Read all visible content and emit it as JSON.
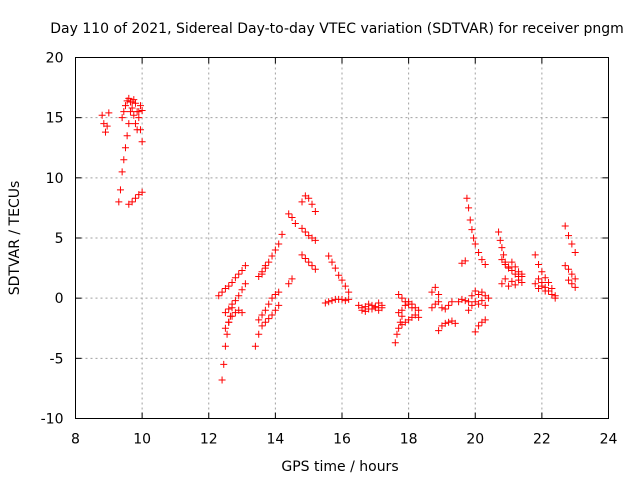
{
  "chart_data": {
    "type": "scatter",
    "title": "Day 110 of 2021, Sidereal Day-to-day VTEC variation (SDTVAR) for receiver pngm",
    "xlabel": "GPS time / hours",
    "ylabel": "SDTVAR / TECUs",
    "xlim": [
      8,
      24
    ],
    "ylim": [
      -10,
      20
    ],
    "xticks": [
      8,
      10,
      12,
      14,
      16,
      18,
      20,
      22,
      24
    ],
    "yticks": [
      -10,
      -5,
      0,
      5,
      10,
      15,
      20
    ],
    "grid": true,
    "marker": "+",
    "color": "#ff0000",
    "segments": [
      {
        "x": [
          8.8,
          8.85,
          8.9,
          8.95,
          9.0
        ],
        "y": [
          15.2,
          14.5,
          13.8,
          14.3,
          15.4
        ]
      },
      {
        "x": [
          9.3,
          9.35,
          9.4,
          9.45,
          9.5,
          9.55,
          9.6,
          9.65,
          9.7,
          9.75,
          9.8,
          9.85,
          9.9,
          9.95,
          10.0
        ],
        "y": [
          8.0,
          9.0,
          10.5,
          11.5,
          12.5,
          13.5,
          14.5,
          15.5,
          16.3,
          16.5,
          16.2,
          15.5,
          15.0,
          14.0,
          13.0
        ]
      },
      {
        "x": [
          9.4,
          9.45,
          9.5,
          9.55,
          9.6,
          9.65,
          9.7,
          9.75,
          9.8,
          9.85,
          9.9,
          9.95,
          10.0
        ],
        "y": [
          15.0,
          15.5,
          16.0,
          16.4,
          16.6,
          16.3,
          15.8,
          15.2,
          14.5,
          14.0,
          15.5,
          16.0,
          15.6
        ]
      },
      {
        "x": [
          9.6,
          9.7,
          9.8,
          9.9,
          10.0
        ],
        "y": [
          7.8,
          8.0,
          8.3,
          8.6,
          8.8
        ]
      },
      {
        "x": [
          12.3,
          12.4,
          12.5,
          12.6,
          12.7,
          12.8,
          12.9,
          13.0,
          13.1
        ],
        "y": [
          0.2,
          0.5,
          0.8,
          1.0,
          1.3,
          1.7,
          2.0,
          2.3,
          2.7
        ]
      },
      {
        "x": [
          12.4,
          12.45,
          12.5,
          12.55,
          12.6,
          12.65,
          12.7
        ],
        "y": [
          -6.8,
          -5.5,
          -4.0,
          -3.0,
          -2.0,
          -1.5,
          -0.8
        ]
      },
      {
        "x": [
          12.5,
          12.6,
          12.7,
          12.8,
          12.9,
          13.0,
          13.1
        ],
        "y": [
          -1.2,
          -0.9,
          -0.5,
          -0.2,
          0.2,
          0.7,
          1.2
        ]
      },
      {
        "x": [
          12.5,
          12.6,
          12.7,
          12.8,
          12.9,
          13.0
        ],
        "y": [
          -2.5,
          -2.0,
          -1.5,
          -1.2,
          -1.0,
          -1.2
        ]
      },
      {
        "x": [
          13.4,
          13.5,
          13.6,
          13.7,
          13.8,
          13.9,
          14.0,
          14.1
        ],
        "y": [
          -4.0,
          -3.0,
          -2.3,
          -2.0,
          -1.7,
          -1.4,
          -1.0,
          -0.6
        ]
      },
      {
        "x": [
          13.5,
          13.6,
          13.7,
          13.8,
          13.9,
          14.0,
          14.1
        ],
        "y": [
          -1.8,
          -1.4,
          -1.0,
          -0.5,
          0.0,
          0.3,
          0.5
        ]
      },
      {
        "x": [
          13.6,
          13.7,
          13.8,
          13.9,
          14.0,
          14.1,
          14.2
        ],
        "y": [
          2.0,
          2.5,
          3.0,
          3.5,
          4.0,
          4.5,
          5.3
        ]
      },
      {
        "x": [
          13.5,
          13.6,
          13.7
        ],
        "y": [
          1.8,
          2.2,
          2.7
        ]
      },
      {
        "x": [
          14.4,
          14.5,
          14.6
        ],
        "y": [
          7.0,
          6.7,
          6.2
        ]
      },
      {
        "x": [
          14.8,
          14.9,
          15.0,
          15.1,
          15.2
        ],
        "y": [
          8.0,
          8.5,
          8.3,
          7.8,
          7.2
        ]
      },
      {
        "x": [
          14.4,
          14.5
        ],
        "y": [
          1.2,
          1.6
        ]
      },
      {
        "x": [
          14.8,
          14.9,
          15.0,
          15.1,
          15.2
        ],
        "y": [
          3.6,
          3.3,
          3.0,
          2.7,
          2.4
        ]
      },
      {
        "x": [
          14.8,
          14.9,
          15.0,
          15.1,
          15.2
        ],
        "y": [
          5.8,
          5.5,
          5.2,
          5.0,
          4.8
        ]
      },
      {
        "x": [
          15.6,
          15.7,
          15.8,
          15.9,
          16.0,
          16.1,
          16.2
        ],
        "y": [
          3.5,
          3.0,
          2.5,
          1.9,
          1.5,
          1.0,
          0.5
        ]
      },
      {
        "x": [
          15.5,
          15.6,
          15.7,
          15.8,
          15.9,
          16.0,
          16.1,
          16.2
        ],
        "y": [
          -0.4,
          -0.3,
          -0.2,
          -0.1,
          -0.1,
          -0.1,
          -0.2,
          -0.1
        ]
      },
      {
        "x": [
          16.5,
          16.6,
          16.7,
          16.8,
          16.9,
          17.0,
          17.1,
          17.2
        ],
        "y": [
          -0.6,
          -0.8,
          -0.7,
          -0.5,
          -0.9,
          -0.7,
          -0.4,
          -0.6
        ]
      },
      {
        "x": [
          16.6,
          16.7,
          16.8,
          16.9,
          17.0,
          17.1,
          17.2
        ],
        "y": [
          -1.0,
          -1.1,
          -0.9,
          -0.6,
          -0.8,
          -1.0,
          -0.8
        ]
      },
      {
        "x": [
          17.6,
          17.65,
          17.7,
          17.75,
          17.8
        ],
        "y": [
          -3.7,
          -3.0,
          -2.5,
          -2.0,
          -1.5
        ]
      },
      {
        "x": [
          17.7,
          17.8,
          17.9,
          18.0,
          18.1,
          18.2,
          18.3
        ],
        "y": [
          -1.2,
          -1.0,
          -0.6,
          -0.3,
          -0.5,
          -0.8,
          -1.0
        ]
      },
      {
        "x": [
          17.7,
          17.8,
          17.9,
          18.0,
          18.1
        ],
        "y": [
          0.3,
          0.0,
          -0.3,
          -0.5,
          -0.8
        ]
      },
      {
        "x": [
          17.8,
          17.9,
          18.0,
          18.1,
          18.2,
          18.3
        ],
        "y": [
          -2.2,
          -2.0,
          -1.8,
          -1.6,
          -1.4,
          -1.6
        ]
      },
      {
        "x": [
          18.7,
          18.8,
          18.9,
          19.0,
          19.1,
          19.2,
          19.3
        ],
        "y": [
          -0.8,
          -0.5,
          -0.3,
          -0.8,
          -0.9,
          -0.6,
          -0.3
        ]
      },
      {
        "x": [
          18.7,
          18.8,
          18.9
        ],
        "y": [
          0.5,
          0.9,
          0.3
        ]
      },
      {
        "x": [
          18.9,
          19.0,
          19.1,
          19.2,
          19.3,
          19.4
        ],
        "y": [
          -2.7,
          -2.3,
          -2.1,
          -2.0,
          -1.9,
          -2.1
        ]
      },
      {
        "x": [
          19.5,
          19.6,
          19.7
        ],
        "y": [
          -0.3,
          -0.1,
          -0.2
        ]
      },
      {
        "x": [
          19.6,
          19.7
        ],
        "y": [
          2.9,
          3.1
        ]
      },
      {
        "x": [
          19.75,
          19.8,
          19.85,
          19.9,
          19.95,
          20.0,
          20.1,
          20.2,
          20.3
        ],
        "y": [
          8.3,
          7.5,
          6.5,
          5.7,
          5.0,
          4.5,
          3.8,
          3.2,
          2.8
        ]
      },
      {
        "x": [
          19.8,
          19.9,
          20.0,
          20.1,
          20.2,
          20.3,
          20.4
        ],
        "y": [
          -0.3,
          0.2,
          0.6,
          0.3,
          0.5,
          0.2,
          0.0
        ]
      },
      {
        "x": [
          19.8,
          19.9,
          20.0,
          20.1,
          20.2,
          20.3
        ],
        "y": [
          -1.0,
          -0.6,
          -0.3,
          -0.5,
          -0.2,
          -0.6
        ]
      },
      {
        "x": [
          20.0,
          20.1,
          20.2,
          20.3
        ],
        "y": [
          -2.8,
          -2.3,
          -2.0,
          -1.8
        ]
      },
      {
        "x": [
          20.7,
          20.75,
          20.8,
          20.85,
          20.9,
          21.0,
          21.1,
          21.2,
          21.3,
          21.4
        ],
        "y": [
          5.5,
          4.8,
          4.2,
          3.6,
          3.0,
          2.6,
          2.3,
          2.0,
          1.8,
          2.0
        ]
      },
      {
        "x": [
          20.8,
          20.9,
          21.0,
          21.1,
          21.2,
          21.3,
          21.4
        ],
        "y": [
          1.2,
          1.6,
          1.0,
          1.4,
          1.1,
          1.5,
          1.3
        ]
      },
      {
        "x": [
          20.8,
          20.9,
          21.0,
          21.1,
          21.2,
          21.3,
          21.4
        ],
        "y": [
          3.2,
          2.8,
          2.5,
          3.0,
          2.6,
          2.2,
          1.8
        ]
      },
      {
        "x": [
          21.8,
          21.9,
          22.0,
          22.1,
          22.2,
          22.3,
          22.4
        ],
        "y": [
          3.6,
          2.8,
          2.2,
          1.7,
          1.3,
          0.8,
          0.2
        ]
      },
      {
        "x": [
          21.8,
          21.9,
          22.0,
          22.1,
          22.2,
          22.3,
          22.4
        ],
        "y": [
          1.2,
          1.6,
          1.3,
          0.9,
          0.6,
          0.3,
          0.0
        ]
      },
      {
        "x": [
          21.9,
          22.0,
          22.1
        ],
        "y": [
          0.8,
          1.0,
          0.6
        ]
      },
      {
        "x": [
          22.7,
          22.8,
          22.9,
          23.0
        ],
        "y": [
          6.0,
          5.2,
          4.5,
          3.8
        ]
      },
      {
        "x": [
          22.7,
          22.8,
          22.9,
          23.0
        ],
        "y": [
          2.7,
          2.4,
          2.0,
          1.6
        ]
      },
      {
        "x": [
          22.8,
          22.9,
          23.0
        ],
        "y": [
          1.5,
          1.2,
          0.9
        ]
      }
    ]
  }
}
